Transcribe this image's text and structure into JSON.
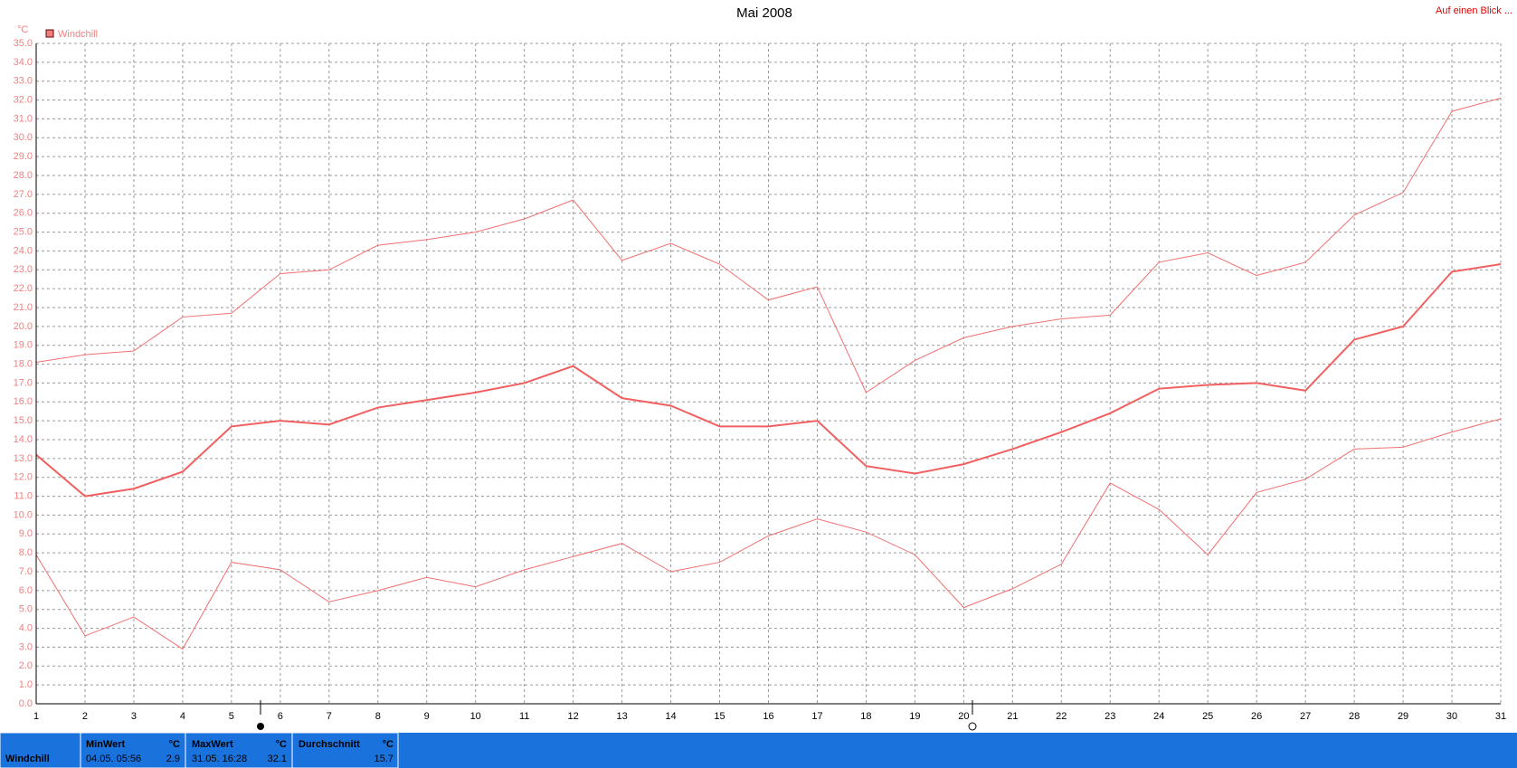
{
  "chart_data": {
    "type": "line",
    "title": "Mai 2008",
    "link": "Auf einen Blick ...",
    "ylabel": "°C",
    "legend": "Windchill",
    "x": [
      1,
      2,
      3,
      4,
      5,
      6,
      7,
      8,
      9,
      10,
      11,
      12,
      13,
      14,
      15,
      16,
      17,
      18,
      19,
      20,
      21,
      22,
      23,
      24,
      25,
      26,
      27,
      28,
      29,
      30,
      31
    ],
    "xlim": [
      1,
      31
    ],
    "xticks": [
      1,
      2,
      3,
      4,
      5,
      6,
      7,
      8,
      9,
      10,
      11,
      12,
      13,
      14,
      15,
      16,
      17,
      18,
      19,
      20,
      21,
      22,
      23,
      24,
      25,
      26,
      27,
      28,
      29,
      30,
      31
    ],
    "ylim": [
      0,
      35
    ],
    "yticks": [
      {
        "value": 0,
        "label": "0.0"
      },
      {
        "value": 1,
        "label": "1.0"
      },
      {
        "value": 2,
        "label": "2.0"
      },
      {
        "value": 3,
        "label": "3.0"
      },
      {
        "value": 4,
        "label": "4.0"
      },
      {
        "value": 5,
        "label": "5.0"
      },
      {
        "value": 6,
        "label": "6.0"
      },
      {
        "value": 7,
        "label": "7.0"
      },
      {
        "value": 8,
        "label": "8.0"
      },
      {
        "value": 9,
        "label": "9.0"
      },
      {
        "value": 10,
        "label": "10.0"
      },
      {
        "value": 11,
        "label": "11.0"
      },
      {
        "value": 12,
        "label": "12.0"
      },
      {
        "value": 13,
        "label": "13.0"
      },
      {
        "value": 14,
        "label": "14.0"
      },
      {
        "value": 15,
        "label": "15.0"
      },
      {
        "value": 16,
        "label": "16.0"
      },
      {
        "value": 17,
        "label": "17.0"
      },
      {
        "value": 18,
        "label": "18.0"
      },
      {
        "value": 19,
        "label": "19.0"
      },
      {
        "value": 20,
        "label": "20.0"
      },
      {
        "value": 21,
        "label": "21.0"
      },
      {
        "value": 22,
        "label": "22.0"
      },
      {
        "value": 23,
        "label": "23.0"
      },
      {
        "value": 24,
        "label": "24.0"
      },
      {
        "value": 25,
        "label": "25.0"
      },
      {
        "value": 26,
        "label": "26.0"
      },
      {
        "value": 27,
        "label": "27.0"
      },
      {
        "value": 28,
        "label": "28.0"
      },
      {
        "value": 29,
        "label": "29.0"
      },
      {
        "value": 30,
        "label": "30.0"
      },
      {
        "value": 31,
        "label": "31.0"
      },
      {
        "value": 32,
        "label": "32.0"
      },
      {
        "value": 33,
        "label": "33.0"
      },
      {
        "value": 34,
        "label": "34.0"
      },
      {
        "value": 35,
        "label": "35.0"
      }
    ],
    "grid": true,
    "series": [
      {
        "color": "#f07070",
        "width": 1,
        "values": [
          18.1,
          18.5,
          18.7,
          20.5,
          20.7,
          22.8,
          23.0,
          24.3,
          24.6,
          25.0,
          25.7,
          26.7,
          23.5,
          24.4,
          23.3,
          21.4,
          22.1,
          16.5,
          18.2,
          19.4,
          20.0,
          20.4,
          20.6,
          23.4,
          23.9,
          22.7,
          23.4,
          25.9,
          27.1,
          31.4,
          32.1
        ]
      },
      {
        "color": "#f06060",
        "width": 2,
        "values": [
          13.2,
          11.0,
          11.4,
          12.3,
          14.7,
          15.0,
          14.8,
          15.7,
          16.1,
          16.5,
          17.0,
          17.9,
          16.2,
          15.8,
          14.7,
          14.7,
          15.0,
          12.6,
          12.2,
          12.7,
          13.5,
          14.4,
          15.4,
          16.7,
          16.9,
          17.0,
          16.6,
          19.3,
          20.0,
          22.9,
          23.3
        ]
      },
      {
        "color": "#f07070",
        "width": 1,
        "values": [
          7.9,
          3.6,
          4.6,
          2.9,
          7.5,
          7.1,
          5.4,
          6.0,
          6.7,
          6.2,
          7.1,
          7.8,
          8.5,
          7.0,
          7.5,
          8.9,
          9.8,
          9.1,
          7.9,
          5.1,
          6.1,
          7.4,
          11.7,
          10.3,
          7.9,
          11.2,
          11.9,
          13.5,
          13.6,
          14.4,
          15.1
        ]
      }
    ]
  },
  "summary": {
    "label": "Windchill",
    "unit": "°C",
    "min": {
      "header": "MinWert",
      "time": "04.05.  05:56",
      "value": 2.9
    },
    "max": {
      "header": "MaxWert",
      "time": "31.05.  16:28",
      "value": 32.1
    },
    "avg": {
      "header": "Durchschnitt",
      "value": 15.7
    }
  }
}
